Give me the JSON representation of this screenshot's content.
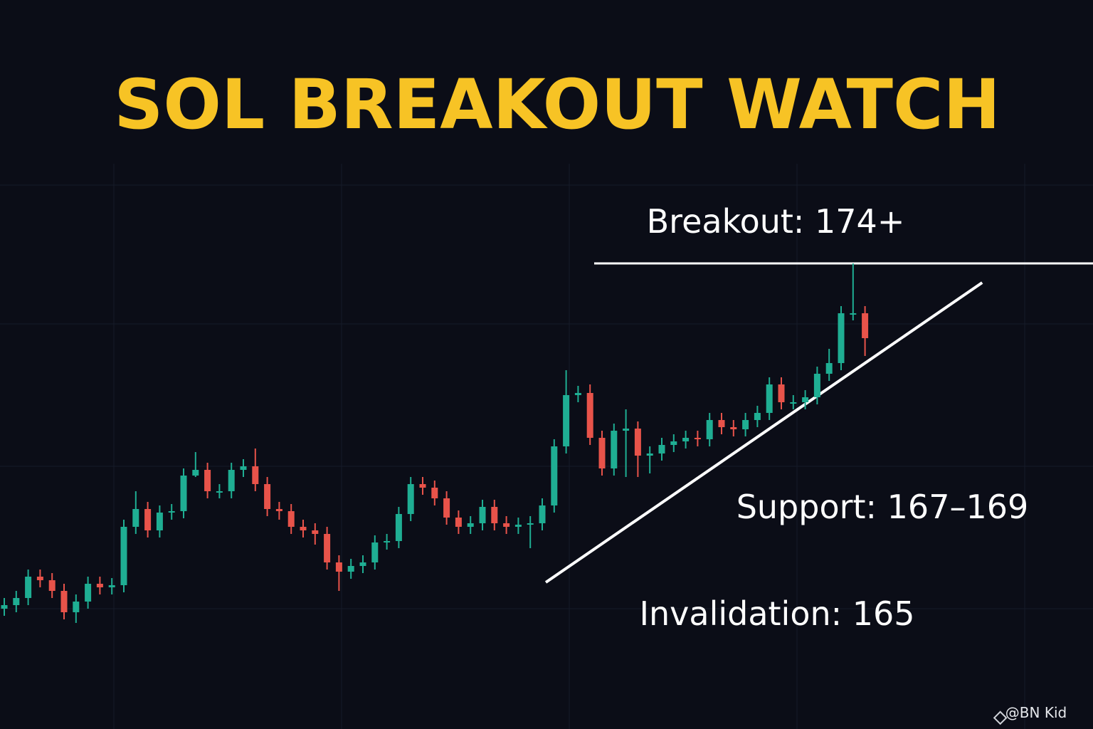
{
  "chart_data": {
    "type": "candlestick",
    "title": "SOL BREAKOUT WATCH",
    "annotations": {
      "breakout": "Breakout: 174+",
      "support": "Support: 167–169",
      "invalidation": "Invalidation: 165"
    },
    "watermark": "@BN Kid",
    "up_color": "#1fae93",
    "down_color": "#e8534a",
    "line_color": "#ffffff",
    "title_color": "#f7c325",
    "ylim": [
      163.4,
      175.4
    ],
    "breakout_level": 174,
    "trendline": {
      "x": [
        45.3,
        81.8
      ],
      "values": [
        165.04,
        173.46
      ]
    },
    "open": [
      164.3,
      164.4,
      164.6,
      165.2,
      165.1,
      164.8,
      164.2,
      164.5,
      165.0,
      164.9,
      164.96,
      166.6,
      167.1,
      166.5,
      167.0,
      167.04,
      168.04,
      168.2,
      167.6,
      167.6,
      168.2,
      168.3,
      167.8,
      167.1,
      167.04,
      166.6,
      166.5,
      166.4,
      165.6,
      165.34,
      165.5,
      165.6,
      166.16,
      166.2,
      166.96,
      167.8,
      167.7,
      167.4,
      166.86,
      166.6,
      166.7,
      167.16,
      166.7,
      166.6,
      166.66,
      166.7,
      167.2,
      168.86,
      170.3,
      170.36,
      169.1,
      168.24,
      169.3,
      169.36,
      168.6,
      168.66,
      168.9,
      169.0,
      169.1,
      169.06,
      169.6,
      169.4,
      169.34,
      169.6,
      169.8,
      170.6,
      170.1,
      170.1,
      170.24,
      170.9,
      171.2,
      172.6,
      172.6
    ],
    "high": [
      164.6,
      164.8,
      165.4,
      165.4,
      165.3,
      165.0,
      164.7,
      165.2,
      165.2,
      165.16,
      166.8,
      167.6,
      167.3,
      167.2,
      167.24,
      168.24,
      168.7,
      168.4,
      167.8,
      168.4,
      168.5,
      168.8,
      168.0,
      167.3,
      167.24,
      166.8,
      166.7,
      166.6,
      165.8,
      165.7,
      165.8,
      166.36,
      166.4,
      167.16,
      168.0,
      168.0,
      167.9,
      167.6,
      167.06,
      166.9,
      167.36,
      167.36,
      166.9,
      166.86,
      166.9,
      167.4,
      169.06,
      171.0,
      170.56,
      170.6,
      169.3,
      169.5,
      169.9,
      169.56,
      168.86,
      169.1,
      169.2,
      169.3,
      169.3,
      169.8,
      169.8,
      169.6,
      169.8,
      170.0,
      170.8,
      170.8,
      170.3,
      170.44,
      171.1,
      171.6,
      172.8,
      174.0,
      172.8
    ],
    "low": [
      164.1,
      164.2,
      164.4,
      164.9,
      164.6,
      164.0,
      163.9,
      164.3,
      164.7,
      164.7,
      164.76,
      166.4,
      166.3,
      166.3,
      166.8,
      166.84,
      168.0,
      167.4,
      167.4,
      167.4,
      168.0,
      167.6,
      166.9,
      166.8,
      166.4,
      166.3,
      166.1,
      165.4,
      164.8,
      165.14,
      165.3,
      165.4,
      165.96,
      166.0,
      166.76,
      167.5,
      167.2,
      166.66,
      166.4,
      166.4,
      166.5,
      166.5,
      166.4,
      166.4,
      166.0,
      166.5,
      167.0,
      168.66,
      170.1,
      168.9,
      168.04,
      168.04,
      168.0,
      168.0,
      168.1,
      168.46,
      168.7,
      168.8,
      168.86,
      168.86,
      169.2,
      169.14,
      169.14,
      169.4,
      169.6,
      169.9,
      169.9,
      169.9,
      170.04,
      170.7,
      171.0,
      172.4,
      171.4
    ],
    "close": [
      164.4,
      164.6,
      165.2,
      165.1,
      164.8,
      164.2,
      164.5,
      165.0,
      164.9,
      164.96,
      166.6,
      167.1,
      166.5,
      167.0,
      167.04,
      168.04,
      168.2,
      167.6,
      167.6,
      168.2,
      168.3,
      167.8,
      167.1,
      167.04,
      166.6,
      166.5,
      166.4,
      165.6,
      165.34,
      165.5,
      165.6,
      166.16,
      166.2,
      166.96,
      167.8,
      167.7,
      167.4,
      166.86,
      166.6,
      166.7,
      167.16,
      166.7,
      166.6,
      166.66,
      166.7,
      167.2,
      168.86,
      170.3,
      170.36,
      169.1,
      168.24,
      169.3,
      169.36,
      168.6,
      168.66,
      168.9,
      169.0,
      169.1,
      169.06,
      169.6,
      169.4,
      169.34,
      169.6,
      169.8,
      170.6,
      170.1,
      170.1,
      170.24,
      170.9,
      171.2,
      172.6,
      172.6,
      171.9
    ]
  }
}
